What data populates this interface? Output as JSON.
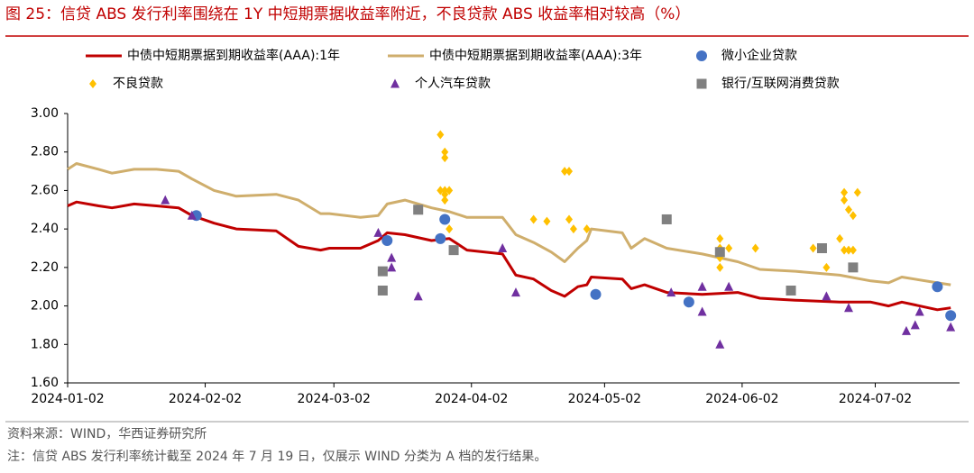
{
  "chart_data": {
    "type": "line",
    "title": "图 25：信贷 ABS 发行利率围绕在 1Y 中短期票据收益率附近，不良贷款 ABS 收益率相对较高（%）",
    "source": "资料来源：WIND，华西证券研究所",
    "note": "注：信贷 ABS 发行利率统计截至 2024 年 7 月 19 日，仅展示 WIND 分类为 A 档的发行结果。",
    "xlim": [
      "2024-01-02",
      "2024-07-21"
    ],
    "xticks": [
      "2024-01-02",
      "2024-02-02",
      "2024-03-02",
      "2024-04-02",
      "2024-05-02",
      "2024-06-02",
      "2024-07-02"
    ],
    "ylim": [
      1.6,
      3.0
    ],
    "yticks": [
      {
        "value": 1.6,
        "label": "1.60"
      },
      {
        "value": 1.8,
        "label": "1.80"
      },
      {
        "value": 2.0,
        "label": "2.00"
      },
      {
        "value": 2.2,
        "label": "2.20"
      },
      {
        "value": 2.4,
        "label": "2.40"
      },
      {
        "value": 2.6,
        "label": "2.60"
      },
      {
        "value": 2.8,
        "label": "2.80"
      },
      {
        "value": 3.0,
        "label": "3.00"
      }
    ],
    "grid": false,
    "series": [
      {
        "name": "中债中短期票据到期收益率(AAA):1年",
        "type": "line",
        "color": "#c00000",
        "x": [
          "2024-01-02",
          "2024-01-04",
          "2024-01-09",
          "2024-01-12",
          "2024-01-17",
          "2024-01-22",
          "2024-01-27",
          "2024-01-30",
          "2024-02-04",
          "2024-02-09",
          "2024-02-18",
          "2024-02-23",
          "2024-02-28",
          "2024-03-01",
          "2024-03-08",
          "2024-03-12",
          "2024-03-14",
          "2024-03-18",
          "2024-03-24",
          "2024-03-28",
          "2024-04-01",
          "2024-04-09",
          "2024-04-12",
          "2024-04-16",
          "2024-04-20",
          "2024-04-23",
          "2024-04-26",
          "2024-04-28",
          "2024-04-29",
          "2024-05-06",
          "2024-05-08",
          "2024-05-11",
          "2024-05-16",
          "2024-05-24",
          "2024-06-01",
          "2024-06-06",
          "2024-06-14",
          "2024-06-24",
          "2024-07-01",
          "2024-07-05",
          "2024-07-08",
          "2024-07-16",
          "2024-07-19"
        ],
        "values": [
          2.52,
          2.54,
          2.52,
          2.51,
          2.53,
          2.52,
          2.51,
          2.47,
          2.43,
          2.4,
          2.39,
          2.31,
          2.29,
          2.3,
          2.3,
          2.34,
          2.38,
          2.37,
          2.34,
          2.35,
          2.29,
          2.27,
          2.16,
          2.14,
          2.08,
          2.05,
          2.1,
          2.11,
          2.15,
          2.14,
          2.09,
          2.11,
          2.07,
          2.06,
          2.07,
          2.04,
          2.03,
          2.02,
          2.02,
          2.0,
          2.02,
          1.98,
          1.99
        ]
      },
      {
        "name": "中债中短期票据到期收益率(AAA):3年",
        "type": "line",
        "color": "#cfae6c",
        "x": [
          "2024-01-02",
          "2024-01-04",
          "2024-01-09",
          "2024-01-12",
          "2024-01-17",
          "2024-01-22",
          "2024-01-27",
          "2024-01-30",
          "2024-02-04",
          "2024-02-09",
          "2024-02-18",
          "2024-02-23",
          "2024-02-28",
          "2024-03-01",
          "2024-03-08",
          "2024-03-12",
          "2024-03-14",
          "2024-03-18",
          "2024-03-24",
          "2024-03-28",
          "2024-04-01",
          "2024-04-09",
          "2024-04-12",
          "2024-04-16",
          "2024-04-20",
          "2024-04-23",
          "2024-04-26",
          "2024-04-28",
          "2024-04-29",
          "2024-05-06",
          "2024-05-08",
          "2024-05-11",
          "2024-05-16",
          "2024-05-24",
          "2024-06-01",
          "2024-06-06",
          "2024-06-14",
          "2024-06-24",
          "2024-07-01",
          "2024-07-05",
          "2024-07-08",
          "2024-07-16",
          "2024-07-19"
        ],
        "values": [
          2.71,
          2.74,
          2.71,
          2.69,
          2.71,
          2.71,
          2.7,
          2.66,
          2.6,
          2.57,
          2.58,
          2.55,
          2.48,
          2.48,
          2.46,
          2.47,
          2.53,
          2.55,
          2.51,
          2.49,
          2.46,
          2.46,
          2.37,
          2.33,
          2.28,
          2.23,
          2.3,
          2.34,
          2.4,
          2.38,
          2.3,
          2.35,
          2.3,
          2.27,
          2.23,
          2.19,
          2.18,
          2.16,
          2.13,
          2.12,
          2.15,
          2.12,
          2.11
        ]
      },
      {
        "name": "微小企业贷款",
        "type": "scatter",
        "marker": "circle",
        "color": "#4472c4",
        "x": [
          "2024-01-31",
          "2024-03-14",
          "2024-03-27",
          "2024-03-26",
          "2024-04-30",
          "2024-05-21",
          "2024-07-16",
          "2024-07-19"
        ],
        "values": [
          2.47,
          2.34,
          2.45,
          2.35,
          2.06,
          2.02,
          2.1,
          1.95
        ]
      },
      {
        "name": "不良贷款",
        "type": "scatter",
        "marker": "diamond",
        "color": "#ffc000",
        "x": [
          "2024-03-26",
          "2024-03-27",
          "2024-03-27",
          "2024-03-27",
          "2024-03-27",
          "2024-03-27",
          "2024-03-26",
          "2024-03-28",
          "2024-03-28",
          "2024-04-16",
          "2024-04-19",
          "2024-04-23",
          "2024-04-24",
          "2024-04-24",
          "2024-04-25",
          "2024-04-28",
          "2024-05-28",
          "2024-05-28",
          "2024-05-28",
          "2024-05-28",
          "2024-05-30",
          "2024-06-05",
          "2024-06-18",
          "2024-06-21",
          "2024-06-24",
          "2024-06-25",
          "2024-06-25",
          "2024-06-25",
          "2024-06-26",
          "2024-06-26",
          "2024-06-27",
          "2024-06-27",
          "2024-06-28"
        ],
        "values": [
          2.89,
          2.8,
          2.77,
          2.6,
          2.58,
          2.55,
          2.6,
          2.6,
          2.4,
          2.45,
          2.44,
          2.7,
          2.7,
          2.45,
          2.4,
          2.4,
          2.35,
          2.3,
          2.25,
          2.2,
          2.3,
          2.3,
          2.3,
          2.2,
          2.35,
          2.59,
          2.55,
          2.29,
          2.5,
          2.29,
          2.47,
          2.29,
          2.59
        ]
      },
      {
        "name": "个人汽车贷款",
        "type": "scatter",
        "marker": "triangle",
        "color": "#7030a0",
        "x": [
          "2024-01-24",
          "2024-01-30",
          "2024-03-12",
          "2024-03-15",
          "2024-03-15",
          "2024-03-21",
          "2024-04-09",
          "2024-04-12",
          "2024-05-17",
          "2024-05-24",
          "2024-05-24",
          "2024-05-28",
          "2024-05-30",
          "2024-06-21",
          "2024-06-26",
          "2024-07-09",
          "2024-07-11",
          "2024-07-12",
          "2024-07-19"
        ],
        "values": [
          2.55,
          2.47,
          2.38,
          2.25,
          2.2,
          2.05,
          2.3,
          2.07,
          2.07,
          2.1,
          1.97,
          1.8,
          2.1,
          2.05,
          1.99,
          1.87,
          1.9,
          1.97,
          1.89
        ]
      },
      {
        "name": "银行/互联网消费贷款",
        "type": "scatter",
        "marker": "square",
        "color": "#808080",
        "x": [
          "2024-03-13",
          "2024-03-13",
          "2024-03-21",
          "2024-03-29",
          "2024-05-16",
          "2024-05-28",
          "2024-06-13",
          "2024-06-20",
          "2024-06-27"
        ],
        "values": [
          2.18,
          2.08,
          2.5,
          2.29,
          2.45,
          2.28,
          2.08,
          2.3,
          2.2
        ]
      }
    ]
  }
}
